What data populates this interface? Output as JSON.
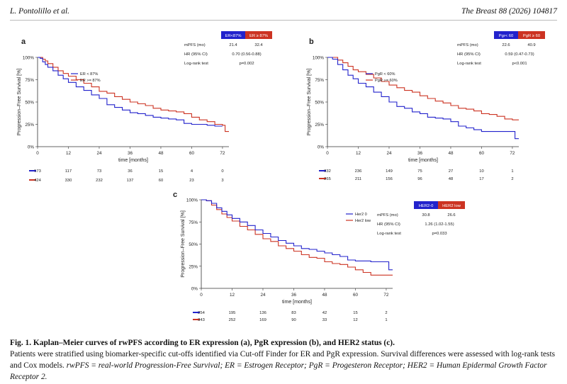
{
  "header": {
    "authors": "L. Pontolillo et al.",
    "journal": "The Breast 88 (2026) 104817"
  },
  "colors": {
    "blue": "#2222cc",
    "red": "#cc3322"
  },
  "panels": [
    {
      "letter": "a",
      "ylabel": "Progression–Free Survival [%]",
      "xlabel": "time [months]",
      "yticks": [
        "0%",
        "25%",
        "50%",
        "75%",
        "100%"
      ],
      "xticks": [
        "0",
        "12",
        "24",
        "36",
        "48",
        "60",
        "72"
      ],
      "legend": [
        "ER < 87%",
        "ER >= 87%"
      ],
      "stats": {
        "headers": [
          "ER<87%",
          "ER ≥ 87%"
        ],
        "rows": [
          {
            "label": "mPFS (mo)",
            "v1": "21.4",
            "v2": "32.4"
          },
          {
            "label": "HR (95% CI)",
            "v": "0.70 (0.56-0.88)"
          },
          {
            "label": "Log-rank test",
            "v": "p=0.002"
          }
        ]
      },
      "risk": [
        [
          "173",
          "117",
          "73",
          "36",
          "15",
          "4",
          "0"
        ],
        [
          "424",
          "330",
          "232",
          "137",
          "60",
          "23",
          "3"
        ]
      ],
      "curves": {
        "blue": [
          [
            0,
            100
          ],
          [
            1,
            99
          ],
          [
            2,
            95
          ],
          [
            3,
            92
          ],
          [
            4,
            89
          ],
          [
            6,
            85
          ],
          [
            8,
            80
          ],
          [
            10,
            76
          ],
          [
            12,
            72
          ],
          [
            15,
            67
          ],
          [
            18,
            63
          ],
          [
            21,
            58
          ],
          [
            24,
            54
          ],
          [
            27,
            47
          ],
          [
            30,
            44
          ],
          [
            33,
            41
          ],
          [
            36,
            38
          ],
          [
            39,
            37
          ],
          [
            42,
            35
          ],
          [
            45,
            33
          ],
          [
            48,
            32
          ],
          [
            51,
            31
          ],
          [
            54,
            30
          ],
          [
            57,
            26
          ],
          [
            60,
            25
          ],
          [
            63,
            25
          ],
          [
            66,
            24
          ],
          [
            69,
            23
          ],
          [
            72,
            23
          ]
        ],
        "red": [
          [
            0,
            100
          ],
          [
            1,
            100
          ],
          [
            2,
            98
          ],
          [
            3,
            96
          ],
          [
            4,
            93
          ],
          [
            6,
            89
          ],
          [
            8,
            85
          ],
          [
            10,
            82
          ],
          [
            12,
            79
          ],
          [
            15,
            75
          ],
          [
            18,
            71
          ],
          [
            21,
            67
          ],
          [
            24,
            62
          ],
          [
            27,
            60
          ],
          [
            30,
            56
          ],
          [
            33,
            53
          ],
          [
            36,
            50
          ],
          [
            39,
            48
          ],
          [
            42,
            46
          ],
          [
            45,
            43
          ],
          [
            48,
            41
          ],
          [
            51,
            40
          ],
          [
            54,
            39
          ],
          [
            57,
            37
          ],
          [
            60,
            33
          ],
          [
            63,
            30
          ],
          [
            66,
            28
          ],
          [
            69,
            25
          ],
          [
            72,
            24
          ],
          [
            73,
            17
          ],
          [
            74.5,
            17
          ]
        ]
      }
    },
    {
      "letter": "b",
      "ylabel": "Progression–Free Survival [%]",
      "xlabel": "time [months]",
      "yticks": [
        "0%",
        "25%",
        "50%",
        "75%",
        "100%"
      ],
      "xticks": [
        "0",
        "12",
        "24",
        "36",
        "48",
        "60",
        "72"
      ],
      "legend": [
        "PgR < 60%",
        "PgR >= 60%"
      ],
      "stats": {
        "headers": [
          "Pgr< 60",
          "PgR ≥ 60"
        ],
        "rows": [
          {
            "label": "mPFS (mo)",
            "v1": "22.6",
            "v2": "40.9"
          },
          {
            "label": "HR (95% CI)",
            "v": "0.59 (0.47-0.73)"
          },
          {
            "label": "Log-rank test",
            "v": "p<0.001"
          }
        ]
      },
      "risk": [
        [
          "332",
          "236",
          "149",
          "75",
          "27",
          "10",
          "1"
        ],
        [
          "265",
          "211",
          "156",
          "96",
          "48",
          "17",
          "2"
        ]
      ],
      "curves": {
        "blue": [
          [
            0,
            100
          ],
          [
            2,
            98
          ],
          [
            4,
            92
          ],
          [
            6,
            86
          ],
          [
            8,
            80
          ],
          [
            10,
            76
          ],
          [
            12,
            71
          ],
          [
            15,
            67
          ],
          [
            18,
            61
          ],
          [
            21,
            56
          ],
          [
            24,
            50
          ],
          [
            27,
            45
          ],
          [
            30,
            43
          ],
          [
            33,
            39
          ],
          [
            36,
            37
          ],
          [
            39,
            33
          ],
          [
            42,
            32
          ],
          [
            45,
            31
          ],
          [
            48,
            28
          ],
          [
            51,
            23
          ],
          [
            54,
            21
          ],
          [
            57,
            19
          ],
          [
            60,
            17
          ],
          [
            63,
            17
          ],
          [
            66,
            17
          ],
          [
            69,
            17
          ],
          [
            72,
            17
          ],
          [
            73,
            9
          ],
          [
            74.5,
            9
          ]
        ],
        "red": [
          [
            0,
            100
          ],
          [
            2,
            100
          ],
          [
            4,
            97
          ],
          [
            6,
            94
          ],
          [
            8,
            90
          ],
          [
            10,
            86
          ],
          [
            12,
            84
          ],
          [
            15,
            81
          ],
          [
            18,
            77
          ],
          [
            21,
            73
          ],
          [
            24,
            69
          ],
          [
            27,
            66
          ],
          [
            30,
            63
          ],
          [
            33,
            61
          ],
          [
            36,
            57
          ],
          [
            39,
            54
          ],
          [
            42,
            51
          ],
          [
            45,
            49
          ],
          [
            48,
            46
          ],
          [
            51,
            43
          ],
          [
            54,
            42
          ],
          [
            57,
            40
          ],
          [
            60,
            37
          ],
          [
            63,
            36
          ],
          [
            66,
            34
          ],
          [
            69,
            31
          ],
          [
            72,
            30
          ],
          [
            74.5,
            30
          ]
        ]
      }
    },
    {
      "letter": "c",
      "ylabel": "Progression–Free Survival [%]",
      "xlabel": "time [months]",
      "yticks": [
        "0%",
        "25%",
        "50%",
        "75%",
        "100%"
      ],
      "xticks": [
        "0",
        "12",
        "24",
        "36",
        "48",
        "60",
        "72"
      ],
      "legend": [
        "Her2 0",
        "Her2 low"
      ],
      "stats": {
        "headers": [
          "HER2-0",
          "HER2 low"
        ],
        "rows": [
          {
            "label": "mPFS (mo)",
            "v1": "30.8",
            "v2": "26.6"
          },
          {
            "label": "HR (95% CI)",
            "v": "1.26 (1.02-1.55)"
          },
          {
            "label": "Log-rank test",
            "v": "p=0.033"
          }
        ]
      },
      "risk": [
        [
          "254",
          "195",
          "136",
          "83",
          "42",
          "15",
          "2"
        ],
        [
          "343",
          "252",
          "169",
          "90",
          "33",
          "12",
          "1"
        ]
      ],
      "curves": {
        "blue": [
          [
            0,
            100
          ],
          [
            2,
            99
          ],
          [
            4,
            96
          ],
          [
            6,
            91
          ],
          [
            8,
            87
          ],
          [
            10,
            83
          ],
          [
            12,
            79
          ],
          [
            15,
            75
          ],
          [
            18,
            71
          ],
          [
            21,
            66
          ],
          [
            24,
            62
          ],
          [
            27,
            58
          ],
          [
            30,
            54
          ],
          [
            33,
            51
          ],
          [
            36,
            48
          ],
          [
            39,
            45
          ],
          [
            42,
            44
          ],
          [
            45,
            42
          ],
          [
            48,
            40
          ],
          [
            51,
            38
          ],
          [
            54,
            36
          ],
          [
            57,
            32
          ],
          [
            60,
            31
          ],
          [
            63,
            31
          ],
          [
            66,
            30
          ],
          [
            69,
            30
          ],
          [
            72,
            30
          ],
          [
            73,
            21
          ],
          [
            74.5,
            21
          ]
        ],
        "red": [
          [
            0,
            100
          ],
          [
            2,
            99
          ],
          [
            4,
            94
          ],
          [
            6,
            89
          ],
          [
            8,
            84
          ],
          [
            10,
            80
          ],
          [
            12,
            76
          ],
          [
            15,
            70
          ],
          [
            18,
            66
          ],
          [
            21,
            61
          ],
          [
            24,
            56
          ],
          [
            27,
            53
          ],
          [
            30,
            48
          ],
          [
            33,
            45
          ],
          [
            36,
            42
          ],
          [
            39,
            38
          ],
          [
            42,
            35
          ],
          [
            45,
            34
          ],
          [
            48,
            30
          ],
          [
            51,
            28
          ],
          [
            54,
            27
          ],
          [
            57,
            24
          ],
          [
            60,
            21
          ],
          [
            63,
            18
          ],
          [
            66,
            15
          ],
          [
            69,
            15
          ],
          [
            72,
            15
          ],
          [
            74.5,
            15
          ]
        ]
      }
    }
  ],
  "caption": {
    "title": "Fig. 1. Kaplan–Meier curves of rwPFS according to ER expression (a), PgR expression (b), and HER2 status (c).",
    "body": "Patients were stratified using biomarker-specific cut-offs identified via Cut-off Finder for ER and PgR expression. Survival differences were assessed with log-rank tests and Cox models.",
    "abbrev": "rwPFS = real-world Progression-Free Survival; ER = Estrogen Receptor; PgR = Progesteron Receptor; HER2 = Human Epidermal Growth Factor Receptor 2."
  }
}
